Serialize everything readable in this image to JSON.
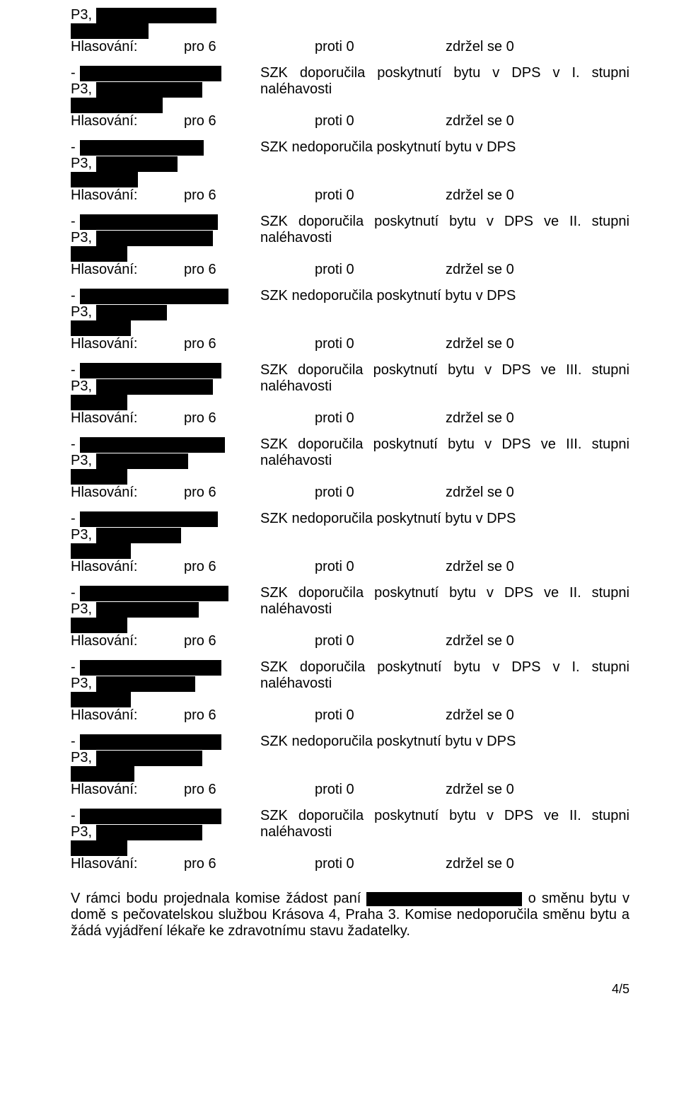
{
  "labels": {
    "p3": "P3,",
    "hlas": "Hlasování:",
    "dash": "-"
  },
  "vote": {
    "for": "pro 6",
    "against": "proti 0",
    "abstain": "zdržel se 0"
  },
  "entries": [
    {
      "standalone_top": true,
      "w1": 170,
      "w2": 110
    }
  ],
  "blocks": [
    {
      "rec": "SZK doporučila poskytnutí bytu v DPS v I. stupni",
      "rec2": "naléhavosti",
      "w1": 200,
      "w2": 150,
      "w3": 130,
      "justify": true
    },
    {
      "rec": "SZK nedoporučila poskytnutí bytu v DPS",
      "w1": 175,
      "w2": 115,
      "w3": 95
    },
    {
      "rec": "SZK doporučila poskytnutí bytu v DPS ve II. stupni",
      "rec2": "naléhavosti",
      "w1": 195,
      "w2": 165,
      "w3": 80,
      "justify": true
    },
    {
      "rec": "SZK nedoporučila poskytnutí bytu v DPS",
      "w1": 210,
      "w2": 100,
      "w3": 85
    },
    {
      "rec": "SZK doporučila poskytnutí bytu v DPS ve III. stupni",
      "rec2": "naléhavosti",
      "w1": 200,
      "w2": 165,
      "w3": 80,
      "justify": true
    },
    {
      "rec": "SZK doporučila poskytnutí bytu v DPS ve III. stupni",
      "rec2": "naléhavosti",
      "w1": 205,
      "w2": 130,
      "w3": 80,
      "justify": true
    },
    {
      "rec": "SZK nedoporučila poskytnutí bytu v DPS",
      "w1": 195,
      "w2": 120,
      "w3": 85
    },
    {
      "rec": "SZK doporučila poskytnutí bytu v DPS ve II. stupni",
      "rec2": "naléhavosti",
      "w1": 210,
      "w2": 145,
      "w3": 80,
      "justify": true
    },
    {
      "rec": "SZK doporučila poskytnutí bytu v DPS v I. stupni",
      "rec2": "naléhavosti",
      "w1": 200,
      "w2": 140,
      "w3": 85,
      "justify": true
    },
    {
      "rec": "SZK nedoporučila poskytnutí bytu v DPS",
      "w1": 200,
      "w2": 150,
      "w3": 90
    },
    {
      "rec": "SZK doporučila poskytnutí bytu v DPS ve II. stupni",
      "rec2": "naléhavosti",
      "w1": 200,
      "w2": 150,
      "w3": 80,
      "justify": true
    }
  ],
  "bottom": {
    "t1": "V rámci bodu projednala komise žádost paní ",
    "t2": " o  směnu  bytu  v domě s pečovatelskou  službou  Krásova  4,  Praha  3.  Komise  nedoporučila  směnu  bytu  a  žádá vyjádření lékaře ke zdravotnímu stavu žadatelky."
  },
  "pagenum": "4/5"
}
